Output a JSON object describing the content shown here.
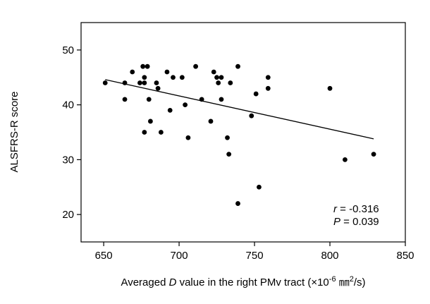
{
  "chart_data": {
    "type": "scatter",
    "title": "",
    "xlabel": {
      "prefix": "Averaged ",
      "italic": "D",
      "middle": " value in the right PMv tract (×10",
      "exp": "-6",
      "mid2": " ㎜",
      "exp2": "2",
      "suffix": "/s)"
    },
    "ylabel": "ALSFRS-R score",
    "xlim": [
      635,
      850
    ],
    "ylim": [
      15,
      55
    ],
    "xticks": [
      650,
      700,
      750,
      800,
      850
    ],
    "yticks": [
      20,
      30,
      40,
      50
    ],
    "grid": false,
    "points": [
      {
        "x": 651,
        "y": 44
      },
      {
        "x": 664,
        "y": 44
      },
      {
        "x": 664,
        "y": 41
      },
      {
        "x": 669,
        "y": 46
      },
      {
        "x": 674,
        "y": 44
      },
      {
        "x": 676,
        "y": 47
      },
      {
        "x": 677,
        "y": 44
      },
      {
        "x": 677,
        "y": 45
      },
      {
        "x": 677,
        "y": 35
      },
      {
        "x": 679,
        "y": 47
      },
      {
        "x": 680,
        "y": 41
      },
      {
        "x": 681,
        "y": 37
      },
      {
        "x": 685,
        "y": 44
      },
      {
        "x": 686,
        "y": 43
      },
      {
        "x": 688,
        "y": 35
      },
      {
        "x": 692,
        "y": 46
      },
      {
        "x": 694,
        "y": 39
      },
      {
        "x": 696,
        "y": 45
      },
      {
        "x": 702,
        "y": 45
      },
      {
        "x": 704,
        "y": 40
      },
      {
        "x": 706,
        "y": 34
      },
      {
        "x": 711,
        "y": 47
      },
      {
        "x": 715,
        "y": 41
      },
      {
        "x": 721,
        "y": 37
      },
      {
        "x": 723,
        "y": 46
      },
      {
        "x": 725,
        "y": 45
      },
      {
        "x": 726,
        "y": 44
      },
      {
        "x": 728,
        "y": 41
      },
      {
        "x": 728,
        "y": 45
      },
      {
        "x": 732,
        "y": 34
      },
      {
        "x": 733,
        "y": 31
      },
      {
        "x": 734,
        "y": 44
      },
      {
        "x": 739,
        "y": 47
      },
      {
        "x": 739,
        "y": 22
      },
      {
        "x": 748,
        "y": 38
      },
      {
        "x": 751,
        "y": 42
      },
      {
        "x": 753,
        "y": 25
      },
      {
        "x": 759,
        "y": 45
      },
      {
        "x": 759,
        "y": 43
      },
      {
        "x": 800,
        "y": 43
      },
      {
        "x": 810,
        "y": 30
      },
      {
        "x": 829,
        "y": 31
      }
    ],
    "regression_line": {
      "x1": 651,
      "y1": 44.6,
      "x2": 829,
      "y2": 33.8
    },
    "annotations": {
      "r_label": "r",
      "r_value": " = -0.316",
      "p_label": "P",
      "p_value": " = 0.039"
    },
    "colors": {
      "points": "#000000",
      "line": "#000000",
      "axes": "#000000"
    }
  }
}
